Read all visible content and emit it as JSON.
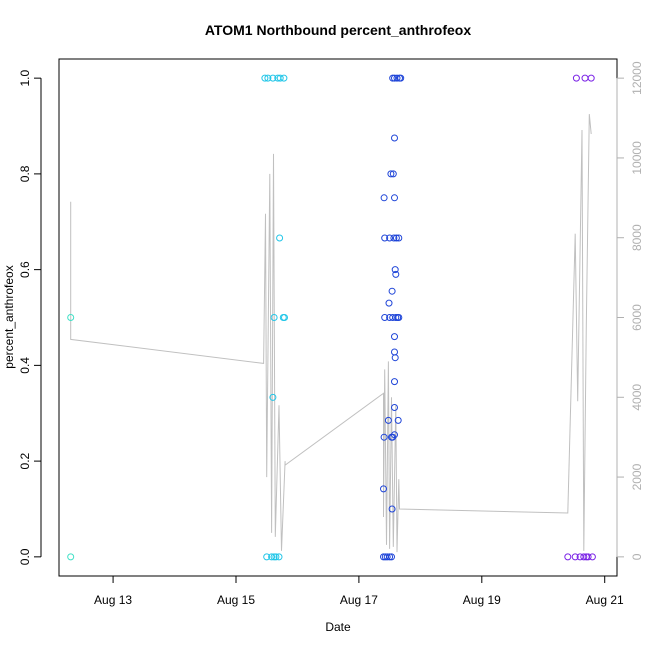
{
  "chart_data": {
    "type": "scatter",
    "title": "ATOM1 Northbound percent_anthrofeox",
    "xlabel": "Date",
    "ylabel": "percent_anthrofeox",
    "x_ticks": [
      "Aug 13",
      "Aug 15",
      "Aug 17",
      "Aug 19",
      "Aug 21"
    ],
    "x_tick_values": [
      13,
      15,
      17,
      19,
      21
    ],
    "xlim": [
      12.12,
      21.2
    ],
    "ylim": [
      -0.04,
      1.04
    ],
    "y_ticks": [
      "0.0",
      "0.2",
      "0.4",
      "0.6",
      "0.8",
      "1.0"
    ],
    "y_tick_values": [
      0,
      0.2,
      0.4,
      0.6,
      0.8,
      1.0
    ],
    "y2lim": [
      -480,
      12480
    ],
    "y2_ticks": [
      "0",
      "2000",
      "4000",
      "6000",
      "8000",
      "10000",
      "12000"
    ],
    "y2_tick_values": [
      0,
      2000,
      4000,
      6000,
      8000,
      10000,
      12000
    ],
    "grid": false,
    "series": [
      {
        "color": "#3fe0c6",
        "points": [
          [
            12.31,
            0.5
          ],
          [
            12.31,
            0.0
          ]
        ]
      },
      {
        "color": "#22c6e8",
        "points": [
          [
            15.47,
            1.0
          ],
          [
            15.52,
            1.0
          ],
          [
            15.6,
            1.0
          ],
          [
            15.68,
            1.0
          ],
          [
            15.72,
            1.0
          ],
          [
            15.78,
            1.0
          ],
          [
            15.71,
            0.666
          ],
          [
            15.62,
            0.5
          ],
          [
            15.77,
            0.5
          ],
          [
            15.79,
            0.5
          ],
          [
            15.6,
            0.333
          ],
          [
            15.5,
            0.0
          ],
          [
            15.58,
            0.0
          ],
          [
            15.62,
            0.0
          ],
          [
            15.65,
            0.0
          ],
          [
            15.7,
            0.0
          ]
        ]
      },
      {
        "color": "#1f45d8",
        "points": [
          [
            17.55,
            1.0
          ],
          [
            17.58,
            1.0
          ],
          [
            17.62,
            1.0
          ],
          [
            17.66,
            1.0
          ],
          [
            17.68,
            1.0
          ],
          [
            17.58,
            0.875
          ],
          [
            17.52,
            0.8
          ],
          [
            17.56,
            0.8
          ],
          [
            17.41,
            0.75
          ],
          [
            17.58,
            0.75
          ],
          [
            17.42,
            0.666
          ],
          [
            17.5,
            0.666
          ],
          [
            17.57,
            0.666
          ],
          [
            17.61,
            0.666
          ],
          [
            17.65,
            0.666
          ],
          [
            17.59,
            0.6
          ],
          [
            17.6,
            0.59
          ],
          [
            17.54,
            0.555
          ],
          [
            17.49,
            0.53
          ],
          [
            17.42,
            0.5
          ],
          [
            17.5,
            0.5
          ],
          [
            17.55,
            0.5
          ],
          [
            17.6,
            0.5
          ],
          [
            17.63,
            0.5
          ],
          [
            17.65,
            0.5
          ],
          [
            17.58,
            0.46
          ],
          [
            17.58,
            0.428
          ],
          [
            17.59,
            0.416
          ],
          [
            17.58,
            0.366
          ],
          [
            17.58,
            0.312
          ],
          [
            17.48,
            0.285
          ],
          [
            17.64,
            0.285
          ],
          [
            17.41,
            0.25
          ],
          [
            17.53,
            0.25
          ],
          [
            17.55,
            0.25
          ],
          [
            17.58,
            0.255
          ],
          [
            17.4,
            0.142
          ],
          [
            17.54,
            0.1
          ],
          [
            17.4,
            0.0
          ],
          [
            17.43,
            0.0
          ],
          [
            17.46,
            0.0
          ],
          [
            17.5,
            0.0
          ],
          [
            17.53,
            0.0
          ]
        ]
      },
      {
        "color": "#7a22e6",
        "points": [
          [
            20.54,
            1.0
          ],
          [
            20.68,
            1.0
          ],
          [
            20.78,
            1.0
          ],
          [
            20.4,
            0.0
          ],
          [
            20.52,
            0.0
          ],
          [
            20.6,
            0.0
          ],
          [
            20.66,
            0.0
          ],
          [
            20.7,
            0.0
          ],
          [
            20.73,
            0.0
          ],
          [
            20.8,
            0.0
          ]
        ]
      }
    ],
    "secondary_line": {
      "color": "#c0c0c0",
      "axis": "right",
      "points": [
        [
          12.31,
          8900
        ],
        [
          12.31,
          5450
        ],
        [
          15.45,
          4850
        ],
        [
          15.48,
          8600
        ],
        [
          15.5,
          2000
        ],
        [
          15.55,
          9600
        ],
        [
          15.58,
          600
        ],
        [
          15.61,
          10100
        ],
        [
          15.64,
          500
        ],
        [
          15.7,
          3800
        ],
        [
          15.74,
          150
        ],
        [
          15.8,
          2400
        ],
        [
          15.8,
          2300
        ],
        [
          17.4,
          4100
        ],
        [
          17.4,
          1000
        ],
        [
          17.42,
          4700
        ],
        [
          17.45,
          300
        ],
        [
          17.48,
          4900
        ],
        [
          17.5,
          200
        ],
        [
          17.53,
          4000
        ],
        [
          17.56,
          250
        ],
        [
          17.6,
          3800
        ],
        [
          17.62,
          120
        ],
        [
          17.65,
          1950
        ],
        [
          17.66,
          1200
        ],
        [
          20.4,
          1100
        ],
        [
          20.52,
          8100
        ],
        [
          20.56,
          3900
        ],
        [
          20.63,
          10700
        ],
        [
          20.66,
          150
        ],
        [
          20.7,
          5800
        ],
        [
          20.75,
          11100
        ],
        [
          20.78,
          10600
        ]
      ]
    }
  }
}
